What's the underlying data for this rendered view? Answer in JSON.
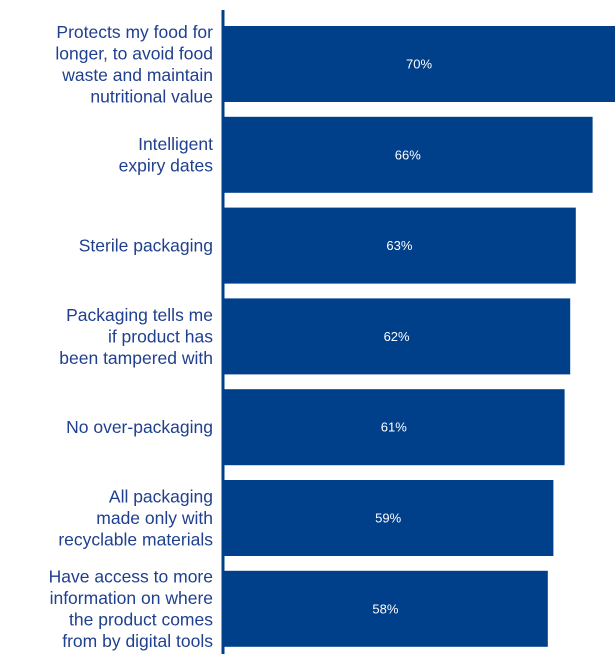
{
  "chart_data": {
    "type": "bar",
    "orientation": "horizontal",
    "categories": [
      [
        "Protects my food for",
        "longer, to avoid food",
        "waste and maintain",
        "nutritional value"
      ],
      [
        "Intelligent",
        "expiry dates"
      ],
      [
        "Sterile packaging"
      ],
      [
        "Packaging tells me",
        "if product has",
        "been tampered with"
      ],
      [
        "No over-packaging"
      ],
      [
        "All packaging",
        "made only with",
        "recyclable materials"
      ],
      [
        "Have access to more",
        "information on where",
        "the product comes",
        "from by digital tools"
      ]
    ],
    "values": [
      70,
      66,
      63,
      62,
      61,
      59,
      58
    ],
    "value_labels": [
      "70%",
      "66%",
      "63%",
      "62%",
      "61%",
      "59%",
      "58%"
    ],
    "xlim": [
      0,
      70
    ],
    "grid": false,
    "legend": "none",
    "colors": {
      "bar": "#003f8a",
      "axis": "#003f8a",
      "category_text": "#1f3f8f",
      "value_text": "#ffffff"
    }
  }
}
